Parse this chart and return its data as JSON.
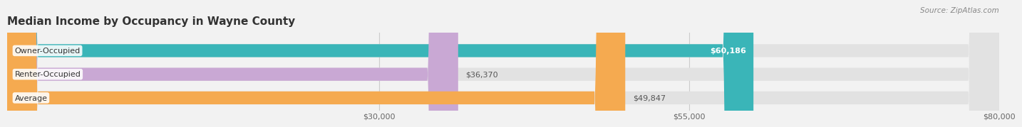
{
  "title": "Median Income by Occupancy in Wayne County",
  "source": "Source: ZipAtlas.com",
  "categories": [
    "Owner-Occupied",
    "Renter-Occupied",
    "Average"
  ],
  "values": [
    60186,
    36370,
    49847
  ],
  "bar_colors": [
    "#3ab5b8",
    "#c9a8d4",
    "#f5aa50"
  ],
  "value_labels": [
    "$60,186",
    "$36,370",
    "$49,847"
  ],
  "xlim": [
    0,
    80000
  ],
  "xticks": [
    30000,
    55000,
    80000
  ],
  "xtick_labels": [
    "$30,000",
    "$55,000",
    "$80,000"
  ],
  "background_color": "#f2f2f2",
  "bar_background_color": "#e2e2e2",
  "title_fontsize": 11,
  "tick_fontsize": 8,
  "value_fontsize": 8,
  "label_fontsize": 8
}
